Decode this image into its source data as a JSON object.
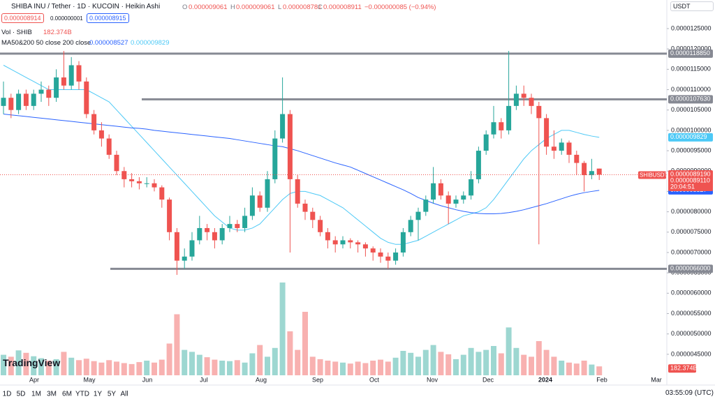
{
  "header": {
    "symbol": "SHIBA INU / Tether · 1D · KUCOIN · Heikin Ashi",
    "o_label": "O",
    "o": "0.000009061",
    "h_label": "H",
    "h": "0.000009061",
    "l_label": "L",
    "l": "0.000008781",
    "c_label": "C",
    "c": "0.000008911",
    "change": "−0.000000085 (−0.94%)",
    "sell": "0.000008914",
    "spread": "0.000000001",
    "buy": "0.000008915",
    "currency": "USDT"
  },
  "indicators": {
    "vol_label": "Vol · SHIB",
    "vol_value": "182.374B",
    "ma_label": "MA50&200 50 close 200 close",
    "ma200_value": "0.000008527",
    "ma50_value": "0.000009829"
  },
  "toolbar": {
    "ranges": [
      "1D",
      "5D",
      "1M",
      "3M",
      "6M",
      "YTD",
      "1Y",
      "5Y",
      "All"
    ],
    "clock": "03:55:09 (UTC)",
    "logo": "TradingView",
    "symbol_tag": "SHIBUSDT",
    "countdown": "20:04:51"
  },
  "chart_data": {
    "type": "candlestick",
    "title": "SHIBUSDT",
    "up_color": "#26a69a",
    "down_color": "#ef5350",
    "x_labels": [
      "Apr",
      "May",
      "Jun",
      "Jul",
      "Aug",
      "Sep",
      "Oct",
      "Nov",
      "Dec",
      "2024",
      "Feb",
      "Mar"
    ],
    "ylim": [
      3.95e-06,
      1.2825e-05
    ],
    "yticks": [
      {
        "value": 1.25e-05,
        "label": "0.0000125000"
      },
      {
        "value": 1.2e-05,
        "label": "0.0000120000"
      },
      {
        "value": 1.15e-05,
        "label": "0.0000115000"
      },
      {
        "value": 1.1e-05,
        "label": "0.0000110000"
      },
      {
        "value": 1.05e-05,
        "label": "0.0000105000"
      },
      {
        "value": 1e-05,
        "label": "0.0000100000"
      },
      {
        "value": 9.5e-06,
        "label": "0.0000095000"
      },
      {
        "value": 9e-06,
        "label": "0.0000090000"
      },
      {
        "value": 8.5e-06,
        "label": "0.0000085000"
      },
      {
        "value": 8e-06,
        "label": "0.0000080000"
      },
      {
        "value": 7.5e-06,
        "label": "0.0000075000"
      },
      {
        "value": 7e-06,
        "label": "0.0000070000"
      },
      {
        "value": 6.5e-06,
        "label": "0.0000065000"
      },
      {
        "value": 6e-06,
        "label": "0.0000060000"
      },
      {
        "value": 5.5e-06,
        "label": "0.0000055000"
      },
      {
        "value": 5e-06,
        "label": "0.0000050000"
      },
      {
        "value": 4.5e-06,
        "label": "0.0000045000"
      }
    ],
    "levels": [
      {
        "value": 1.1885e-05,
        "label": "0.0000118850"
      },
      {
        "value": 1.0763e-05,
        "label": "0.0000107630"
      },
      {
        "value": 6.6e-06,
        "label": "0.0000066000"
      }
    ],
    "price_tags": [
      {
        "value": 8.919e-06,
        "label": "0.0000089190"
      },
      {
        "value": 8.911e-06,
        "label": "0.0000089110"
      }
    ],
    "candles": [
      [
        1.06e-05,
        1.12e-05,
        1.04e-05,
        1.08e-05
      ],
      [
        1.08e-05,
        1.09e-05,
        1.03e-05,
        1.05e-05
      ],
      [
        1.05e-05,
        1.1e-05,
        1.04e-05,
        1.09e-05
      ],
      [
        1.09e-05,
        1.1e-05,
        1.05e-05,
        1.06e-05
      ],
      [
        1.06e-05,
        1.1e-05,
        1.05e-05,
        1.09e-05
      ],
      [
        1.09e-05,
        1.12e-05,
        1.07e-05,
        1.1e-05
      ],
      [
        1.1e-05,
        1.11e-05,
        1.06e-05,
        1.08e-05
      ],
      [
        1.08e-05,
        1.15e-05,
        1.07e-05,
        1.13e-05
      ],
      [
        1.13e-05,
        1.195e-05,
        1.1e-05,
        1.11e-05
      ],
      [
        1.11e-05,
        1.18e-05,
        1.1e-05,
        1.16e-05
      ],
      [
        1.16e-05,
        1.17e-05,
        1.1e-05,
        1.12e-05
      ],
      [
        1.12e-05,
        1.13e-05,
        1.03e-05,
        1.04e-05
      ],
      [
        1.04e-05,
        1.05e-05,
        9.9e-06,
        1e-05
      ],
      [
        1e-05,
        1.02e-05,
        9.6e-06,
        9.8e-06
      ],
      [
        9.8e-06,
        9.9e-06,
        9.3e-06,
        9.4e-06
      ],
      [
        9.4e-06,
        9.5e-06,
        8.9e-06,
        9e-06
      ],
      [
        9e-06,
        9.1e-06,
        8.6e-06,
        8.8e-06
      ],
      [
        8.8e-06,
        8.95e-06,
        8.6e-06,
        8.75e-06
      ],
      [
        8.75e-06,
        8.85e-06,
        8.55e-06,
        8.7e-06
      ],
      [
        8.7e-06,
        8.85e-06,
        8.6e-06,
        8.7e-06
      ],
      [
        8.7e-06,
        8.8e-06,
        8.5e-06,
        8.6e-06
      ],
      [
        8.6e-06,
        8.65e-06,
        8.1e-06,
        8.3e-06
      ],
      [
        8.3e-06,
        8.35e-06,
        7.3e-06,
        7.5e-06
      ],
      [
        7.5e-06,
        7.6e-06,
        6.45e-06,
        6.8e-06
      ],
      [
        6.8e-06,
        7.1e-06,
        6.6e-06,
        6.9e-06
      ],
      [
        6.9e-06,
        7.5e-06,
        6.8e-06,
        7.3e-06
      ],
      [
        7.3e-06,
        7.9e-06,
        7.2e-06,
        7.6e-06
      ],
      [
        7.6e-06,
        7.7e-06,
        7.3e-06,
        7.5e-06
      ],
      [
        7.5e-06,
        7.6e-06,
        7.1e-06,
        7.3e-06
      ],
      [
        7.3e-06,
        7.7e-06,
        7.2e-06,
        7.6e-06
      ],
      [
        7.6e-06,
        7.9e-06,
        7.5e-06,
        7.7e-06
      ],
      [
        7.7e-06,
        7.8e-06,
        7.5e-06,
        7.6e-06
      ],
      [
        7.6e-06,
        8.1e-06,
        7.5e-06,
        7.9e-06
      ],
      [
        7.9e-06,
        8.6e-06,
        7.8e-06,
        8.4e-06
      ],
      [
        8.4e-06,
        8.5e-06,
        8e-06,
        8.1e-06
      ],
      [
        8.1e-06,
        9e-06,
        8e-06,
        8.8e-06
      ],
      [
        8.8e-06,
        1e-05,
        8.7e-06,
        9.8e-06
      ],
      [
        9.8e-06,
        1.13e-05,
        9.7e-06,
        1.04e-05
      ],
      [
        1.04e-05,
        1.05e-05,
        7e-06,
        8.8e-06
      ],
      [
        8.8e-06,
        8.9e-06,
        8.1e-06,
        8.2e-06
      ],
      [
        8.2e-06,
        8.3e-06,
        7.8e-06,
        8e-06
      ],
      [
        8e-06,
        8.1e-06,
        7.6e-06,
        7.8e-06
      ],
      [
        7.8e-06,
        7.9e-06,
        7.4e-06,
        7.5e-06
      ],
      [
        7.5e-06,
        7.6e-06,
        7.1e-06,
        7.3e-06
      ],
      [
        7.3e-06,
        7.4e-06,
        7e-06,
        7.2e-06
      ],
      [
        7.2e-06,
        7.4e-06,
        7.1e-06,
        7.3e-06
      ],
      [
        7.3e-06,
        7.35e-06,
        7.1e-06,
        7.25e-06
      ],
      [
        7.25e-06,
        7.3e-06,
        7e-06,
        7.2e-06
      ],
      [
        7.2e-06,
        7.25e-06,
        6.9e-06,
        7.1e-06
      ],
      [
        7.1e-06,
        7.15e-06,
        6.8e-06,
        7e-06
      ],
      [
        7e-06,
        7.1e-06,
        6.75e-06,
        6.9e-06
      ],
      [
        6.9e-06,
        7e-06,
        6.6e-06,
        6.8e-06
      ],
      [
        6.8e-06,
        7.1e-06,
        6.7e-06,
        7e-06
      ],
      [
        7e-06,
        7.6e-06,
        6.9e-06,
        7.5e-06
      ],
      [
        7.5e-06,
        7.9e-06,
        7.4e-06,
        7.8e-06
      ],
      [
        7.8e-06,
        8.1e-06,
        7.3e-06,
        8e-06
      ],
      [
        8e-06,
        8.4e-06,
        7.9e-06,
        8.3e-06
      ],
      [
        8.3e-06,
        9.1e-06,
        8.2e-06,
        8.7e-06
      ],
      [
        8.7e-06,
        8.8e-06,
        8.3e-06,
        8.4e-06
      ],
      [
        8.4e-06,
        8.5e-06,
        7.7e-06,
        8.2e-06
      ],
      [
        8.2e-06,
        8.4e-06,
        8.1e-06,
        8.3e-06
      ],
      [
        8.3e-06,
        8.5e-06,
        8.2e-06,
        8.4e-06
      ],
      [
        8.4e-06,
        9e-06,
        8.3e-06,
        8.8e-06
      ],
      [
        8.8e-06,
        9.6e-06,
        8.7e-06,
        9.5e-06
      ],
      [
        9.5e-06,
        1e-05,
        9.4e-06,
        9.9e-06
      ],
      [
        9.9e-06,
        1.06e-05,
        9.8e-06,
        1.02e-05
      ],
      [
        1.02e-05,
        1.03e-05,
        9.8e-06,
        1e-05
      ],
      [
        1e-05,
        1.195e-05,
        9.9e-06,
        1.06e-05
      ],
      [
        1.06e-05,
        1.11e-05,
        1.05e-05,
        1.09e-05
      ],
      [
        1.09e-05,
        1.11e-05,
        1.06e-05,
        1.08e-05
      ],
      [
        1.08e-05,
        1.09e-05,
        1.04e-05,
        1.06e-05
      ],
      [
        1.06e-05,
        1.07e-05,
        7.2e-06,
        1.03e-05
      ],
      [
        1.03e-05,
        1.04e-05,
        9.4e-06,
        9.6e-06
      ],
      [
        9.6e-06,
        1e-05,
        9.3e-06,
        9.5e-06
      ],
      [
        9.5e-06,
        9.8e-06,
        9.4e-06,
        9.7e-06
      ],
      [
        9.7e-06,
        9.75e-06,
        9.2e-06,
        9.4e-06
      ],
      [
        9.4e-06,
        9.5e-06,
        8.9e-06,
        9.2e-06
      ],
      [
        9.2e-06,
        9.25e-06,
        8.5e-06,
        8.9e-06
      ],
      [
        8.9e-06,
        9.3e-06,
        8.8e-06,
        9e-06
      ],
      [
        9.061e-06,
        9.061e-06,
        8.781e-06,
        8.911e-06
      ]
    ],
    "volume": {
      "values": [
        420,
        380,
        510,
        460,
        390,
        350,
        300,
        330,
        480,
        360,
        310,
        340,
        290,
        260,
        310,
        280,
        250,
        230,
        270,
        300,
        260,
        320,
        650,
        1250,
        520,
        480,
        420,
        370,
        320,
        300,
        290,
        310,
        260,
        450,
        620,
        380,
        560,
        1900,
        900,
        520,
        1300,
        380,
        330,
        300,
        280,
        260,
        240,
        280,
        250,
        300,
        320,
        280,
        360,
        500,
        460,
        380,
        520,
        620,
        480,
        430,
        330,
        420,
        560,
        480,
        520,
        600,
        450,
        980,
        560,
        420,
        380,
        700,
        520,
        380,
        300,
        260,
        240,
        300,
        220,
        182.374
      ]
    },
    "series": [
      {
        "name": "MA50",
        "color": "#4dc9f6",
        "values": [
          1.16e-05,
          1.15e-05,
          1.14e-05,
          1.13e-05,
          1.12e-05,
          1.11e-05,
          1.1e-05,
          1.1e-05,
          1.1e-05,
          1.1e-05,
          1.1e-05,
          1.1e-05,
          1.09e-05,
          1.08e-05,
          1.07e-05,
          1.05e-05,
          1.03e-05,
          1.01e-05,
          9.9e-06,
          9.7e-06,
          9.5e-06,
          9.3e-06,
          9.1e-06,
          8.9e-06,
          8.7e-06,
          8.5e-06,
          8.3e-06,
          8.1e-06,
          7.9e-06,
          7.75e-06,
          7.6e-06,
          7.55e-06,
          7.55e-06,
          7.6e-06,
          7.7e-06,
          7.9e-06,
          8.1e-06,
          8.3e-06,
          8.45e-06,
          8.5e-06,
          8.5e-06,
          8.45e-06,
          8.4e-06,
          8.3e-06,
          8.2e-06,
          8.1e-06,
          7.95e-06,
          7.8e-06,
          7.65e-06,
          7.5e-06,
          7.35e-06,
          7.25e-06,
          7.2e-06,
          7.2e-06,
          7.25e-06,
          7.3e-06,
          7.4e-06,
          7.5e-06,
          7.6e-06,
          7.7e-06,
          7.8e-06,
          7.9e-06,
          7.95e-06,
          8e-06,
          8.1e-06,
          8.3e-06,
          8.55e-06,
          8.8e-06,
          9.05e-06,
          9.3e-06,
          9.5e-06,
          9.65e-06,
          9.8e-06,
          9.9e-06,
          1e-05,
          1e-05,
          9.95e-06,
          9.9e-06,
          9.86e-06,
          9.829e-06
        ]
      },
      {
        "name": "MA200",
        "color": "#2962ff",
        "values": [
          1.04e-05,
          1.038e-05,
          1.036e-05,
          1.034e-05,
          1.032e-05,
          1.03e-05,
          1.028e-05,
          1.026e-05,
          1.024e-05,
          1.022e-05,
          1.02e-05,
          1.018e-05,
          1.016e-05,
          1.014e-05,
          1.012e-05,
          1.01e-05,
          1.008e-05,
          1.006e-05,
          1.005e-05,
          1.003e-05,
          1e-05,
          9.98e-06,
          9.96e-06,
          9.94e-06,
          9.92e-06,
          9.9e-06,
          9.88e-06,
          9.86e-06,
          9.84e-06,
          9.82e-06,
          9.8e-06,
          9.77e-06,
          9.74e-06,
          9.71e-06,
          9.68e-06,
          9.65e-06,
          9.62e-06,
          9.6e-06,
          9.55e-06,
          9.5e-06,
          9.44e-06,
          9.38e-06,
          9.32e-06,
          9.26e-06,
          9.2e-06,
          9.15e-06,
          9.1e-06,
          9.02e-06,
          8.94e-06,
          8.86e-06,
          8.78e-06,
          8.7e-06,
          8.62e-06,
          8.54e-06,
          8.45e-06,
          8.35e-06,
          8.28e-06,
          8.21e-06,
          8.15e-06,
          8.1e-06,
          8.05e-06,
          8.01e-06,
          7.98e-06,
          7.96e-06,
          7.95e-06,
          7.95e-06,
          7.96e-06,
          7.98e-06,
          8.01e-06,
          8.05e-06,
          8.1e-06,
          8.15e-06,
          8.2e-06,
          8.26e-06,
          8.32e-06,
          8.38e-06,
          8.43e-06,
          8.47e-06,
          8.5e-06,
          8.527e-06
        ]
      }
    ]
  }
}
